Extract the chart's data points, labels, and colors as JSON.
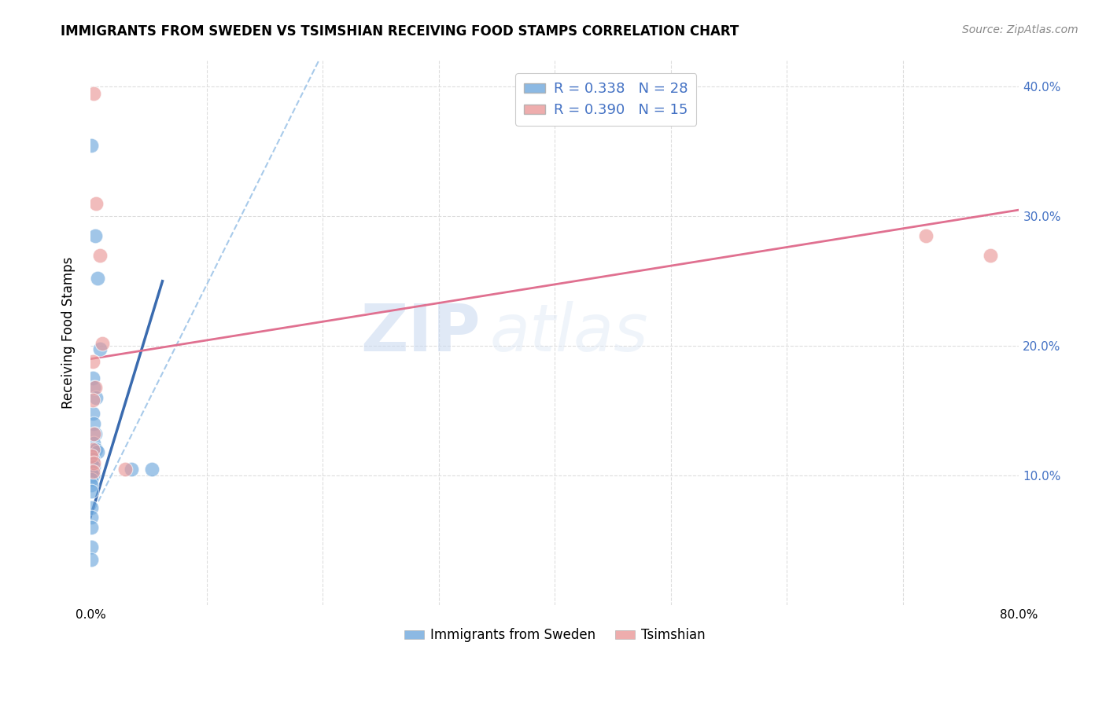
{
  "title": "IMMIGRANTS FROM SWEDEN VS TSIMSHIAN RECEIVING FOOD STAMPS CORRELATION CHART",
  "source": "Source: ZipAtlas.com",
  "ylabel": "Receiving Food Stamps",
  "xlim": [
    0.0,
    0.8
  ],
  "ylim": [
    0.0,
    0.42
  ],
  "legend_r1": "R = 0.338",
  "legend_n1": "N = 28",
  "legend_r2": "R = 0.390",
  "legend_n2": "N = 15",
  "color_sweden": "#6fa8dc",
  "color_tsimshian": "#ea9999",
  "color_line_sweden": "#3a6baf",
  "color_line_tsimshian": "#e07090",
  "color_dashed": "#9fc5e8",
  "watermark_zip": "ZIP",
  "watermark_atlas": "atlas",
  "sweden_points": [
    [
      0.001,
      0.355
    ],
    [
      0.004,
      0.285
    ],
    [
      0.006,
      0.252
    ],
    [
      0.008,
      0.198
    ],
    [
      0.002,
      0.175
    ],
    [
      0.003,
      0.168
    ],
    [
      0.005,
      0.16
    ],
    [
      0.002,
      0.148
    ],
    [
      0.003,
      0.14
    ],
    [
      0.004,
      0.132
    ],
    [
      0.003,
      0.125
    ],
    [
      0.005,
      0.12
    ],
    [
      0.006,
      0.118
    ],
    [
      0.002,
      0.113
    ],
    [
      0.001,
      0.11
    ],
    [
      0.003,
      0.107
    ],
    [
      0.001,
      0.103
    ],
    [
      0.002,
      0.1
    ],
    [
      0.001,
      0.097
    ],
    [
      0.001,
      0.093
    ],
    [
      0.001,
      0.088
    ],
    [
      0.001,
      0.075
    ],
    [
      0.001,
      0.068
    ],
    [
      0.001,
      0.06
    ],
    [
      0.001,
      0.045
    ],
    [
      0.001,
      0.035
    ],
    [
      0.035,
      0.105
    ],
    [
      0.053,
      0.105
    ]
  ],
  "tsimshian_points": [
    [
      0.003,
      0.395
    ],
    [
      0.005,
      0.31
    ],
    [
      0.008,
      0.27
    ],
    [
      0.01,
      0.202
    ],
    [
      0.002,
      0.188
    ],
    [
      0.004,
      0.168
    ],
    [
      0.002,
      0.158
    ],
    [
      0.003,
      0.132
    ],
    [
      0.002,
      0.12
    ],
    [
      0.001,
      0.115
    ],
    [
      0.003,
      0.11
    ],
    [
      0.002,
      0.103
    ],
    [
      0.03,
      0.105
    ],
    [
      0.72,
      0.285
    ],
    [
      0.775,
      0.27
    ]
  ],
  "sweden_trendline_solid": [
    [
      0.0,
      0.068
    ],
    [
      0.062,
      0.25
    ]
  ],
  "sweden_trendline_dashed": [
    [
      0.0,
      0.068
    ],
    [
      0.42,
      0.82
    ]
  ],
  "tsimshian_trendline": [
    [
      0.0,
      0.19
    ],
    [
      0.8,
      0.305
    ]
  ],
  "grid_color": "#dddddd",
  "background_color": "#ffffff",
  "ytick_vals": [
    0.1,
    0.2,
    0.3,
    0.4
  ],
  "ytick_labels": [
    "10.0%",
    "20.0%",
    "30.0%",
    "40.0%"
  ],
  "xtick_vals": [
    0.0,
    0.1,
    0.2,
    0.3,
    0.4,
    0.5,
    0.6,
    0.7,
    0.8
  ],
  "xtick_labels": [
    "0.0%",
    "",
    "",
    "",
    "",
    "",
    "",
    "",
    "80.0%"
  ]
}
